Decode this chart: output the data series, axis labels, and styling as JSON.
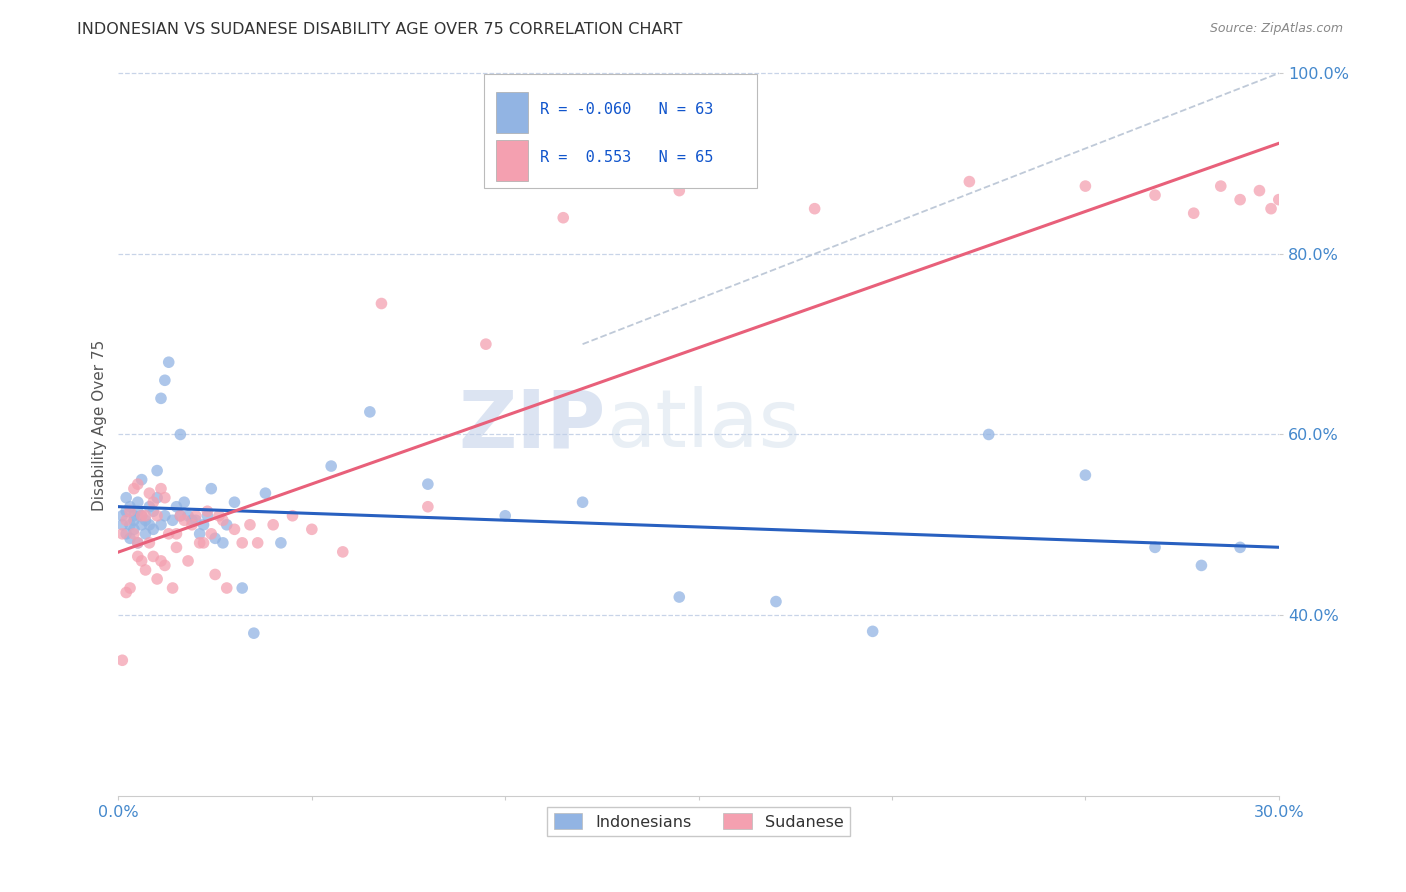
{
  "title": "INDONESIAN VS SUDANESE DISABILITY AGE OVER 75 CORRELATION CHART",
  "source": "Source: ZipAtlas.com",
  "ylabel": "Disability Age Over 75",
  "xmin": 0.0,
  "xmax": 0.3,
  "ymin": 0.2,
  "ymax": 1.02,
  "r_indonesian": -0.06,
  "n_indonesian": 63,
  "r_sudanese": 0.553,
  "n_sudanese": 65,
  "indonesian_color": "#92b4e3",
  "sudanese_color": "#f4a0b0",
  "indonesian_line_color": "#2860c0",
  "sudanese_line_color": "#e8607a",
  "grid_color": "#c8d4e8",
  "background_color": "#ffffff",
  "ind_x": [
    0.001,
    0.001,
    0.002,
    0.002,
    0.002,
    0.003,
    0.003,
    0.003,
    0.004,
    0.004,
    0.004,
    0.005,
    0.005,
    0.005,
    0.006,
    0.006,
    0.006,
    0.007,
    0.007,
    0.008,
    0.008,
    0.009,
    0.009,
    0.01,
    0.01,
    0.011,
    0.011,
    0.012,
    0.012,
    0.013,
    0.014,
    0.015,
    0.016,
    0.016,
    0.017,
    0.018,
    0.019,
    0.02,
    0.021,
    0.022,
    0.023,
    0.024,
    0.025,
    0.027,
    0.028,
    0.03,
    0.032,
    0.035,
    0.038,
    0.042,
    0.055,
    0.065,
    0.08,
    0.1,
    0.12,
    0.145,
    0.17,
    0.195,
    0.225,
    0.25,
    0.268,
    0.28,
    0.29
  ],
  "ind_y": [
    0.5,
    0.51,
    0.49,
    0.515,
    0.53,
    0.485,
    0.5,
    0.52,
    0.51,
    0.505,
    0.495,
    0.48,
    0.515,
    0.525,
    0.5,
    0.51,
    0.55,
    0.49,
    0.505,
    0.5,
    0.52,
    0.495,
    0.515,
    0.53,
    0.56,
    0.5,
    0.64,
    0.51,
    0.66,
    0.68,
    0.505,
    0.52,
    0.51,
    0.6,
    0.525,
    0.51,
    0.505,
    0.505,
    0.49,
    0.5,
    0.51,
    0.54,
    0.485,
    0.48,
    0.5,
    0.525,
    0.43,
    0.38,
    0.535,
    0.48,
    0.565,
    0.625,
    0.545,
    0.51,
    0.525,
    0.42,
    0.415,
    0.382,
    0.6,
    0.555,
    0.475,
    0.455,
    0.475
  ],
  "sud_x": [
    0.001,
    0.001,
    0.002,
    0.002,
    0.003,
    0.003,
    0.004,
    0.004,
    0.005,
    0.005,
    0.005,
    0.006,
    0.006,
    0.007,
    0.007,
    0.008,
    0.008,
    0.009,
    0.009,
    0.01,
    0.01,
    0.011,
    0.011,
    0.012,
    0.012,
    0.013,
    0.014,
    0.015,
    0.015,
    0.016,
    0.017,
    0.018,
    0.019,
    0.02,
    0.021,
    0.022,
    0.023,
    0.024,
    0.025,
    0.026,
    0.027,
    0.028,
    0.03,
    0.032,
    0.034,
    0.036,
    0.04,
    0.045,
    0.05,
    0.058,
    0.068,
    0.08,
    0.095,
    0.115,
    0.145,
    0.18,
    0.22,
    0.25,
    0.268,
    0.278,
    0.285,
    0.29,
    0.295,
    0.298,
    0.3
  ],
  "sud_y": [
    0.35,
    0.49,
    0.425,
    0.505,
    0.43,
    0.515,
    0.49,
    0.54,
    0.465,
    0.48,
    0.545,
    0.46,
    0.51,
    0.45,
    0.51,
    0.48,
    0.535,
    0.465,
    0.525,
    0.44,
    0.51,
    0.46,
    0.54,
    0.455,
    0.53,
    0.49,
    0.43,
    0.475,
    0.49,
    0.51,
    0.505,
    0.46,
    0.5,
    0.51,
    0.48,
    0.48,
    0.515,
    0.49,
    0.445,
    0.51,
    0.505,
    0.43,
    0.495,
    0.48,
    0.5,
    0.48,
    0.5,
    0.51,
    0.495,
    0.47,
    0.745,
    0.52,
    0.7,
    0.84,
    0.87,
    0.85,
    0.88,
    0.875,
    0.865,
    0.845,
    0.875,
    0.86,
    0.87,
    0.85,
    0.86
  ],
  "xticks": [
    0.0,
    0.05,
    0.1,
    0.15,
    0.2,
    0.25,
    0.3
  ],
  "xtick_labels": [
    "0.0%",
    "",
    "",
    "",
    "",
    "",
    "30.0%"
  ],
  "yticks": [
    0.4,
    0.6,
    0.8,
    1.0
  ],
  "ytick_labels": [
    "40.0%",
    "60.0%",
    "80.0%",
    "100.0%"
  ]
}
